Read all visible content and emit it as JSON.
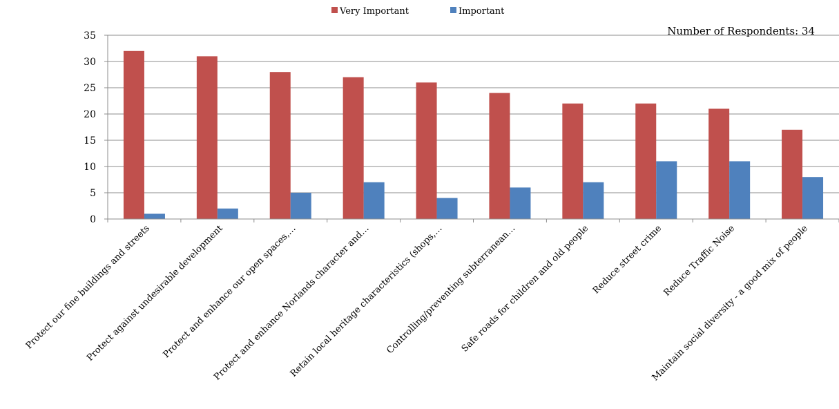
{
  "chart_data": {
    "type": "bar",
    "categories": [
      "Protect our fine buildings and streets",
      "Protect against undesirable development",
      "Protect and enhance our open spaces,…",
      "Protect and enhance Norlands character and…",
      "Retain local heritage characteristics (shops,…",
      "Controlling/preventing subterranean…",
      "Safe roads for children and old people",
      "Reduce street crime",
      "Reduce Traffic Noise",
      "Maintain social diversity - a good mix of people"
    ],
    "series": [
      {
        "name": "Very Important",
        "color": "#C0504D",
        "values": [
          32,
          31,
          28,
          27,
          26,
          24,
          22,
          22,
          21,
          17
        ]
      },
      {
        "name": "Important",
        "color": "#4F81BD",
        "values": [
          1,
          2,
          5,
          7,
          4,
          6,
          7,
          11,
          11,
          8
        ]
      }
    ],
    "ylim": [
      0,
      35
    ],
    "yticks": [
      0,
      5,
      10,
      15,
      20,
      25,
      30,
      35
    ],
    "grid": true,
    "legend": "top-center",
    "annotation": "Number of Respondents: 34",
    "title": "",
    "xlabel": "",
    "ylabel": ""
  }
}
